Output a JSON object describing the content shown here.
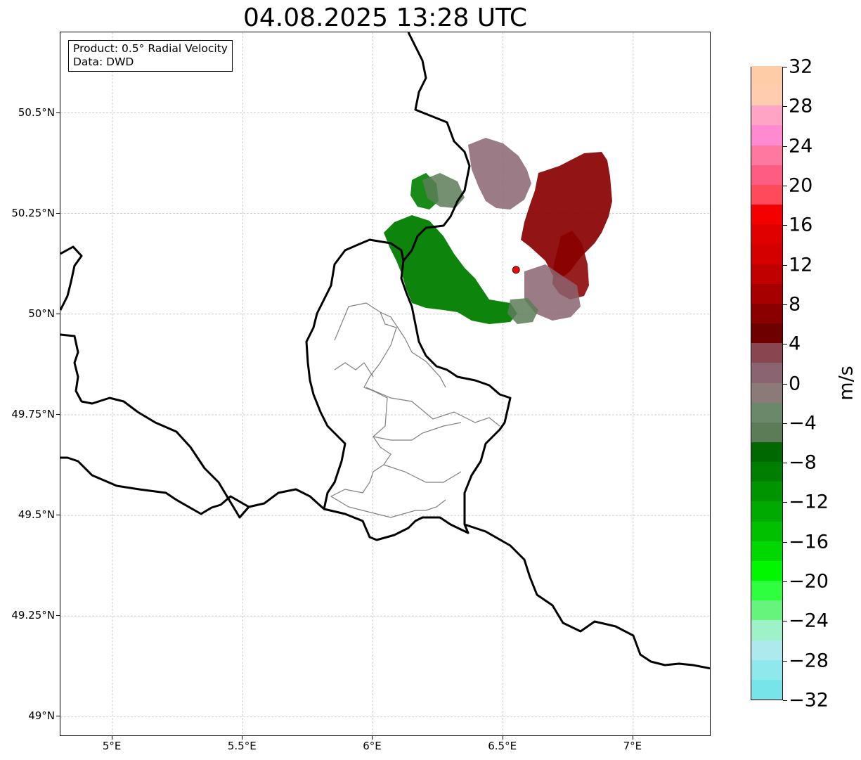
{
  "title": "04.08.2025 13:28 UTC",
  "info_box": {
    "product_line": "Product: 0.5° Radial Velocity",
    "data_line": "Data: DWD"
  },
  "map": {
    "lon_range": [
      4.8,
      7.3
    ],
    "lat_range": [
      48.95,
      50.7
    ],
    "lat_ticks": [
      {
        "value": 49.0,
        "label": "49°N"
      },
      {
        "value": 49.25,
        "label": "49.25°N"
      },
      {
        "value": 49.5,
        "label": "49.5°N"
      },
      {
        "value": 49.75,
        "label": "49.75°N"
      },
      {
        "value": 50.0,
        "label": "50°N"
      },
      {
        "value": 50.25,
        "label": "50.25°N"
      },
      {
        "value": 50.5,
        "label": "50.5°N"
      }
    ],
    "lon_ticks": [
      {
        "value": 5.0,
        "label": "5°E"
      },
      {
        "value": 5.5,
        "label": "5.5°E"
      },
      {
        "value": 6.0,
        "label": "6°E"
      },
      {
        "value": 6.5,
        "label": "6.5°E"
      },
      {
        "value": 7.0,
        "label": "7°E"
      }
    ],
    "radar_site": {
      "lon": 6.55,
      "lat": 50.11,
      "color": "#ff0000"
    },
    "border_color": "#000000",
    "admin_border_color": "#808080",
    "grid": true
  },
  "colorbar": {
    "label": "m/s",
    "min": -32,
    "max": 32,
    "step": 2,
    "tick_labels": [
      {
        "value": 32,
        "label": "32"
      },
      {
        "value": 28,
        "label": "28"
      },
      {
        "value": 24,
        "label": "24"
      },
      {
        "value": 20,
        "label": "20"
      },
      {
        "value": 16,
        "label": "16"
      },
      {
        "value": 12,
        "label": "12"
      },
      {
        "value": 8,
        "label": "8"
      },
      {
        "value": 4,
        "label": "4"
      },
      {
        "value": 0,
        "label": "0"
      },
      {
        "value": -4,
        "label": "−4"
      },
      {
        "value": -8,
        "label": "−8"
      },
      {
        "value": -12,
        "label": "−12"
      },
      {
        "value": -16,
        "label": "−16"
      },
      {
        "value": -20,
        "label": "−20"
      },
      {
        "value": -24,
        "label": "−24"
      },
      {
        "value": -28,
        "label": "−28"
      },
      {
        "value": -32,
        "label": "−32"
      }
    ],
    "colors_bottom_to_top": [
      "#76e4e8",
      "#8ee8ec",
      "#aee9ee",
      "#9ef2c8",
      "#66f47c",
      "#2eff3e",
      "#00f700",
      "#00d800",
      "#00c000",
      "#00aa00",
      "#009400",
      "#007e00",
      "#006800",
      "#5c7c58",
      "#6c886a",
      "#8a7a78",
      "#8a6470",
      "#8a4650",
      "#6e0000",
      "#8a0000",
      "#a60000",
      "#c00000",
      "#d40000",
      "#e00000",
      "#f40000",
      "#ff4a5c",
      "#ff5c84",
      "#ff78a0",
      "#ff8ad0",
      "#ffa4c4",
      "#ffccb0",
      "#ffcca8"
    ]
  }
}
